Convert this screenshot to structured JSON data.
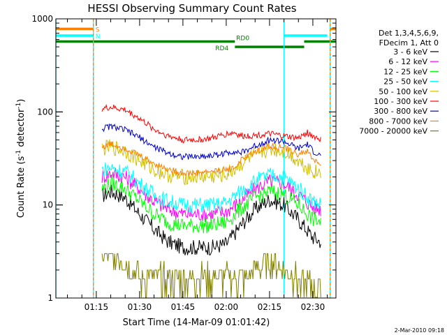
{
  "chart_data": {
    "type": "line",
    "title": "HESSI Observing Summary Count Rates",
    "xlabel": "Start Time (14-Mar-09 01:01:42)",
    "ylabel_main": "Count Rate (s",
    "ylabel_sup1": "-1",
    "ylabel_mid": " detector",
    "ylabel_sup2": "-1",
    "ylabel_end": ")",
    "y_scale": "log",
    "ylim": [
      1,
      1000
    ],
    "xlim": [
      "01:01",
      "02:38"
    ],
    "x_ticks": [
      "01:15",
      "01:30",
      "01:45",
      "02:00",
      "02:15",
      "02:30"
    ],
    "y_ticks": [
      "1",
      "10",
      "100",
      "1000"
    ],
    "legend_header": [
      "Det 1,3,4,5,6,9,",
      "FDecim 1, Att 0"
    ],
    "legend_position": "right",
    "footer": "2-Mar-2010 09:18",
    "flags": [
      {
        "label": "S",
        "color": "#ff8000",
        "level": 780,
        "segments": [
          [
            "01:01",
            "01:14"
          ],
          [
            "02:36",
            "02:38"
          ]
        ]
      },
      {
        "label": "N",
        "color": "#00ffff",
        "level": 660,
        "segments": [
          [
            "01:01",
            "01:14"
          ],
          [
            "02:20",
            "02:35"
          ]
        ]
      },
      {
        "label": "RD0",
        "color": "#008000",
        "level": 570,
        "segments": [
          [
            "01:01",
            "02:03"
          ],
          [
            "02:27",
            "02:38"
          ]
        ]
      },
      {
        "label": "RD4",
        "color": "#008000",
        "level": 500,
        "segments": [
          [
            "02:03",
            "02:27"
          ]
        ]
      }
    ],
    "vertical_markers": [
      {
        "color": "#00ffff",
        "x": [
          "01:01",
          "01:14",
          "02:20",
          "02:36"
        ]
      },
      {
        "color": "#ff8000",
        "x": [
          "01:14",
          "02:36"
        ]
      }
    ],
    "series": [
      {
        "name": "3 - 6 keV",
        "color": "#000000",
        "x": [
          "01:17",
          "01:20",
          "01:25",
          "01:30",
          "01:35",
          "01:40",
          "01:45",
          "01:50",
          "01:55",
          "02:00",
          "02:05",
          "02:10",
          "02:15",
          "02:20",
          "02:25",
          "02:30",
          "02:33"
        ],
        "y": [
          12.5,
          14,
          12,
          8,
          5.5,
          4,
          3.5,
          3.5,
          3.5,
          3.8,
          6,
          9,
          11.5,
          10,
          7,
          4.5,
          4
        ]
      },
      {
        "name": "6 - 12 keV",
        "color": "#ff00ff",
        "x": [
          "01:17",
          "01:20",
          "01:25",
          "01:30",
          "01:35",
          "01:40",
          "01:45",
          "01:50",
          "01:55",
          "02:00",
          "02:05",
          "02:10",
          "02:15",
          "02:20",
          "02:25",
          "02:30",
          "02:33"
        ],
        "y": [
          20,
          22,
          20,
          15,
          11,
          9,
          8,
          8,
          8,
          8.5,
          11,
          15,
          18,
          17,
          13,
          9.5,
          9
        ]
      },
      {
        "name": "12 - 25 keV",
        "color": "#00ff00",
        "x": [
          "01:17",
          "01:20",
          "01:25",
          "01:30",
          "01:35",
          "01:40",
          "01:45",
          "01:50",
          "01:55",
          "02:00",
          "02:05",
          "02:10",
          "02:15",
          "02:20",
          "02:25",
          "02:30",
          "02:33"
        ],
        "y": [
          15,
          17,
          15,
          11,
          8,
          6.5,
          6,
          6,
          6,
          6.5,
          9,
          12,
          14,
          13,
          10,
          7,
          6.5
        ]
      },
      {
        "name": "25 - 50 keV",
        "color": "#00ffff",
        "x": [
          "01:17",
          "01:20",
          "01:25",
          "01:30",
          "01:35",
          "01:40",
          "01:45",
          "01:50",
          "01:55",
          "02:00",
          "02:05",
          "02:10",
          "02:15",
          "02:20",
          "02:25",
          "02:30",
          "02:33"
        ],
        "y": [
          24,
          25,
          23,
          17,
          13,
          11,
          10,
          10,
          10,
          10.5,
          14,
          18,
          21,
          20,
          15,
          11,
          10
        ]
      },
      {
        "name": "50 - 100 keV",
        "color": "#d0c000",
        "x": [
          "01:17",
          "01:20",
          "01:25",
          "01:30",
          "01:35",
          "01:40",
          "01:45",
          "01:50",
          "01:55",
          "02:00",
          "02:05",
          "02:10",
          "02:15",
          "02:20",
          "02:25",
          "02:30",
          "02:33"
        ],
        "y": [
          40,
          42,
          38,
          30,
          24,
          21,
          20,
          20,
          20,
          21,
          27,
          35,
          40,
          38,
          30,
          23,
          22
        ]
      },
      {
        "name": "100 - 300 keV",
        "color": "#ff0000",
        "x": [
          "01:17",
          "01:20",
          "01:25",
          "01:30",
          "01:35",
          "01:40",
          "01:45",
          "01:50",
          "01:55",
          "02:00",
          "02:03",
          "02:05",
          "02:10",
          "02:15",
          "02:20",
          "02:25",
          "02:28",
          "02:30",
          "02:33"
        ],
        "y": [
          108,
          112,
          105,
          85,
          65,
          55,
          50,
          50,
          52,
          58,
          60,
          55,
          56,
          58,
          55,
          52,
          60,
          55,
          50
        ]
      },
      {
        "name": "300 - 800 keV",
        "color": "#0000cc",
        "x": [
          "01:17",
          "01:20",
          "01:25",
          "01:30",
          "01:35",
          "01:40",
          "01:45",
          "01:50",
          "01:55",
          "02:00",
          "02:03",
          "02:05",
          "02:10",
          "02:15",
          "02:20",
          "02:25",
          "02:28",
          "02:30",
          "02:33"
        ],
        "y": [
          66,
          70,
          64,
          53,
          42,
          36,
          33,
          33,
          34,
          36,
          38,
          36,
          43,
          50,
          48,
          40,
          45,
          38,
          33
        ]
      },
      {
        "name": "800 - 7000 keV",
        "color": "#ff8000",
        "x": [
          "01:17",
          "01:20",
          "01:25",
          "01:30",
          "01:35",
          "01:40",
          "01:45",
          "01:50",
          "01:55",
          "02:00",
          "02:03",
          "02:05",
          "02:10",
          "02:15",
          "02:20",
          "02:25",
          "02:28",
          "02:30",
          "02:33"
        ],
        "y": [
          42,
          45,
          41,
          34,
          28,
          24,
          22,
          22,
          23,
          24,
          25,
          30,
          37,
          43,
          41,
          35,
          38,
          31,
          27
        ]
      },
      {
        "name": "7000 - 20000 keV",
        "color": "#808000",
        "x": [
          "01:17",
          "01:22",
          "01:25",
          "01:28",
          "01:30",
          "02:08",
          "02:10",
          "02:15",
          "02:20",
          "02:25",
          "02:33"
        ],
        "y": [
          3,
          3,
          2.5,
          2,
          1.6,
          1.6,
          2,
          2.5,
          2,
          1.5,
          1.2
        ]
      }
    ]
  }
}
